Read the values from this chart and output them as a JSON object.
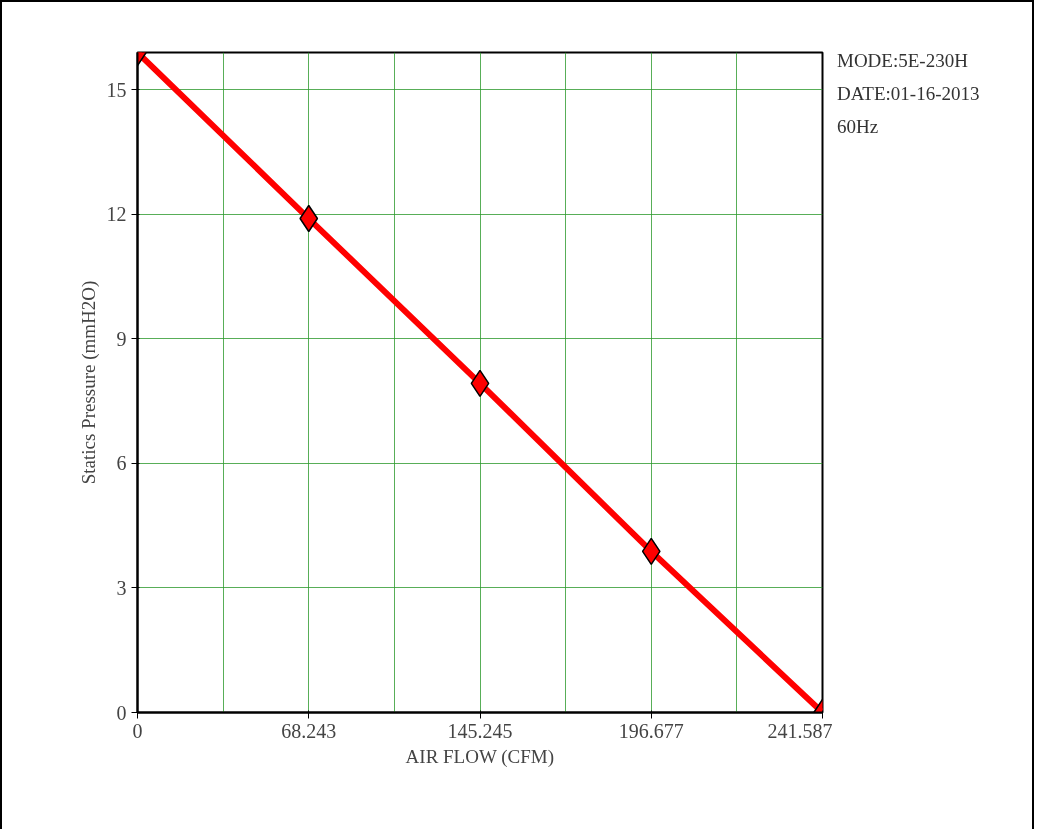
{
  "chart_data": {
    "type": "line",
    "xlabel": "AIR FLOW (CFM)",
    "ylabel": "Statics Pressure (mmH2O)",
    "categories": [
      "0",
      "68.243",
      "145.245",
      "196.677",
      "241.587"
    ],
    "series": [
      {
        "color": "#ff0000",
        "values": [
          15.9,
          11.9,
          7.93,
          3.88,
          0
        ]
      }
    ],
    "ylim": [
      0,
      15.9
    ],
    "yticks": [
      0,
      3,
      6,
      9,
      12,
      15
    ],
    "grid": true,
    "marker": "diamond",
    "line_style": "solid",
    "annotations": [
      "MODE:5E-230H",
      "DATE:01-16-2013",
      "60Hz"
    ]
  }
}
